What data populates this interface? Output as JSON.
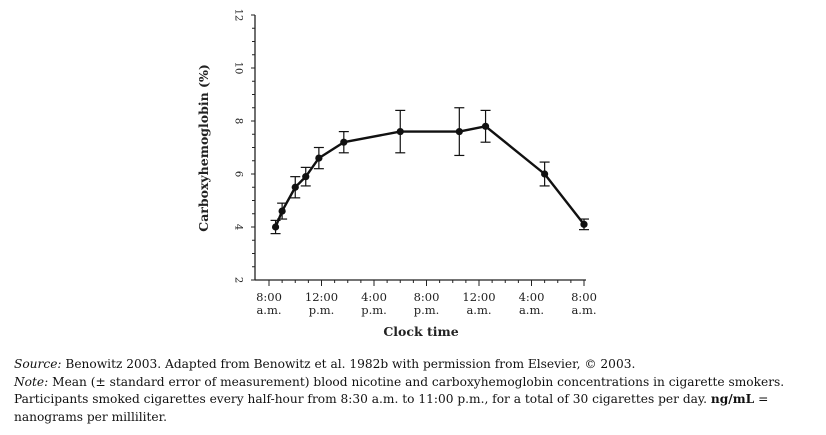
{
  "chart_data": {
    "type": "line",
    "xlabel": "Clock time",
    "ylabel": "Carboxyhemoglobin (%)",
    "ylim": [
      2,
      12
    ],
    "yticks": [
      2,
      4,
      6,
      8,
      10,
      12
    ],
    "xlim": [
      0,
      24
    ],
    "xticks": [
      {
        "x": 0,
        "line1": "8:00",
        "line2": "a.m."
      },
      {
        "x": 4,
        "line1": "12:00",
        "line2": "p.m."
      },
      {
        "x": 8,
        "line1": "4:00",
        "line2": "p.m."
      },
      {
        "x": 12,
        "line1": "8:00",
        "line2": "p.m."
      },
      {
        "x": 16,
        "line1": "12:00",
        "line2": "a.m."
      },
      {
        "x": 20,
        "line1": "4:00",
        "line2": "a.m."
      },
      {
        "x": 24,
        "line1": "8:00",
        "line2": "a.m."
      }
    ],
    "grid": false,
    "series": [
      {
        "x": [
          0.5,
          1.0,
          2.0,
          2.8,
          3.8,
          5.7,
          10.0,
          14.5,
          16.5,
          21.0,
          24.0
        ],
        "y": [
          4.0,
          4.6,
          5.5,
          5.9,
          6.6,
          7.2,
          7.6,
          7.6,
          7.8,
          6.0,
          4.1
        ],
        "error": [
          0.25,
          0.3,
          0.4,
          0.35,
          0.4,
          0.4,
          0.8,
          0.9,
          0.6,
          0.45,
          0.2
        ]
      }
    ]
  },
  "notes": {
    "source_label": "Source:",
    "source_text": " Benowitz 2003. Adapted from Benowitz et al. 1982b with permission from Elsevier, © 2003.",
    "note_label": "Note:",
    "note_text": " Mean (± standard error of measurement) blood nicotine and carboxyhemoglobin concentrations in cigarette smokers. Participants smoked cigarettes every half-hour from 8:30 a.m. to 11:00 p.m., for a total of 30 cigarettes per day. ",
    "unit_term": "ng/mL",
    "unit_def": " = nanograms per milliliter."
  }
}
